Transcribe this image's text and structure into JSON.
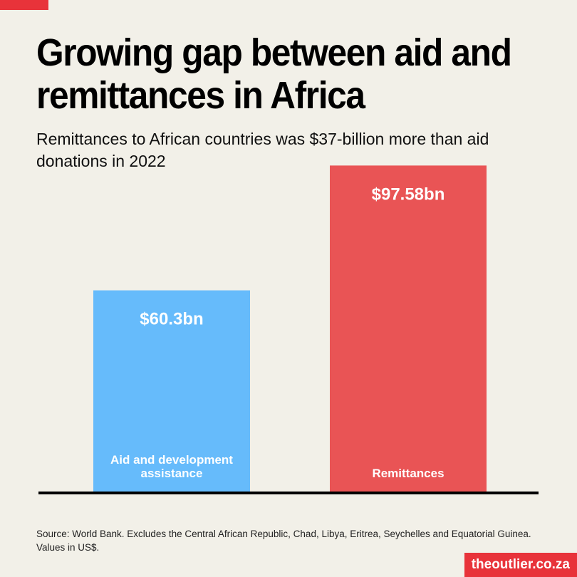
{
  "title": "Growing gap between aid and remittances in Africa",
  "subtitle": "Remittances to African countries was $37-billion more than aid donations in 2022",
  "chart_data": {
    "type": "bar",
    "categories": [
      "Aid and development assistance",
      "Remittances"
    ],
    "category_label_lines": [
      [
        "Aid and development",
        "assistance"
      ],
      [
        "Remittances"
      ]
    ],
    "values": [
      60.3,
      97.58
    ],
    "value_labels": [
      "$60.3bn",
      "$97.58bn"
    ],
    "colors": [
      "#66bbfb",
      "#e95455"
    ],
    "unit": "US$ billion",
    "title": "Growing gap between aid and remittances in Africa",
    "xlabel": "",
    "ylabel": "",
    "ylim": [
      0,
      100
    ],
    "grid": false
  },
  "source": "Source: World Bank. Excludes the Central African Republic, Chad, Libya, Eritrea, Seychelles and Equatorial Guinea. Values in US$.",
  "brand": "theoutlier.co.za",
  "colors": {
    "accent": "#e8333a",
    "background": "#f2f0e8",
    "baseline": "#000000"
  }
}
